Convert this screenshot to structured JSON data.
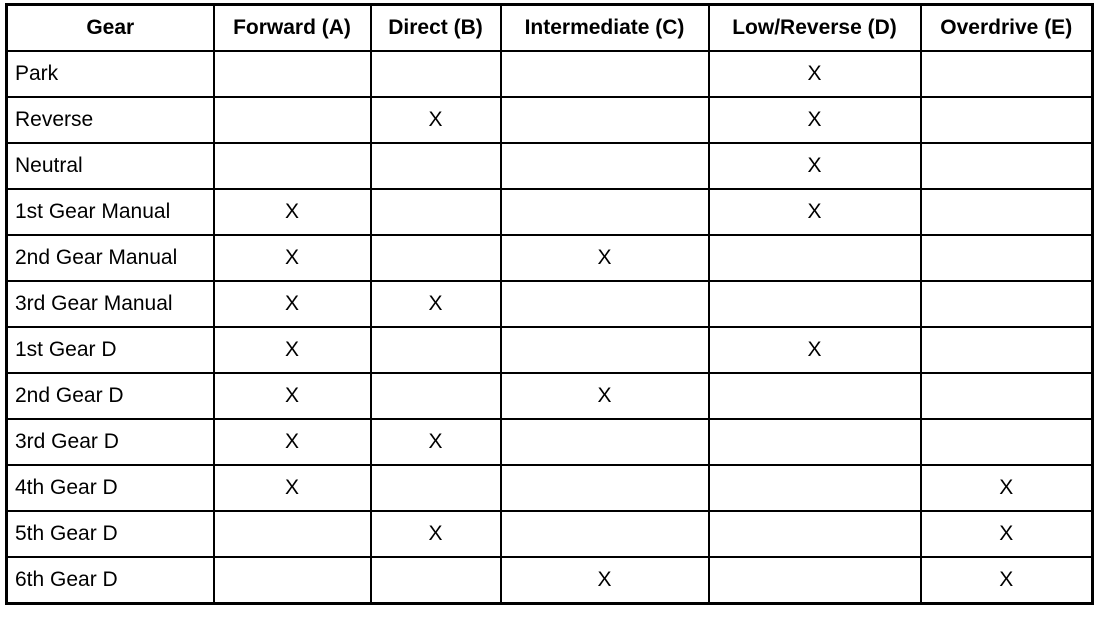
{
  "table": {
    "headers": [
      "Gear",
      "Forward (A)",
      "Direct (B)",
      "Intermediate (C)",
      "Low/Reverse (D)",
      "Overdrive (E)"
    ],
    "mark_symbol": "X",
    "rows": [
      {
        "gear": "Park",
        "cells": [
          "",
          "",
          "",
          "X",
          ""
        ]
      },
      {
        "gear": "Reverse",
        "cells": [
          "",
          "X",
          "",
          "X",
          ""
        ]
      },
      {
        "gear": "Neutral",
        "cells": [
          "",
          "",
          "",
          "X",
          ""
        ]
      },
      {
        "gear": "1st Gear Manual",
        "cells": [
          "X",
          "",
          "",
          "X",
          ""
        ]
      },
      {
        "gear": "2nd Gear Manual",
        "cells": [
          "X",
          "",
          "X",
          "",
          ""
        ]
      },
      {
        "gear": "3rd Gear Manual",
        "cells": [
          "X",
          "X",
          "",
          "",
          ""
        ]
      },
      {
        "gear": "1st Gear D",
        "cells": [
          "X",
          "",
          "",
          "X",
          ""
        ]
      },
      {
        "gear": "2nd Gear D",
        "cells": [
          "X",
          "",
          "X",
          "",
          ""
        ]
      },
      {
        "gear": "3rd Gear D",
        "cells": [
          "X",
          "X",
          "",
          "",
          ""
        ]
      },
      {
        "gear": "4th Gear D",
        "cells": [
          "X",
          "",
          "",
          "",
          "X"
        ]
      },
      {
        "gear": "5th Gear D",
        "cells": [
          "",
          "X",
          "",
          "",
          "X"
        ]
      },
      {
        "gear": "6th Gear D",
        "cells": [
          "",
          "",
          "X",
          "",
          "X"
        ]
      }
    ]
  }
}
